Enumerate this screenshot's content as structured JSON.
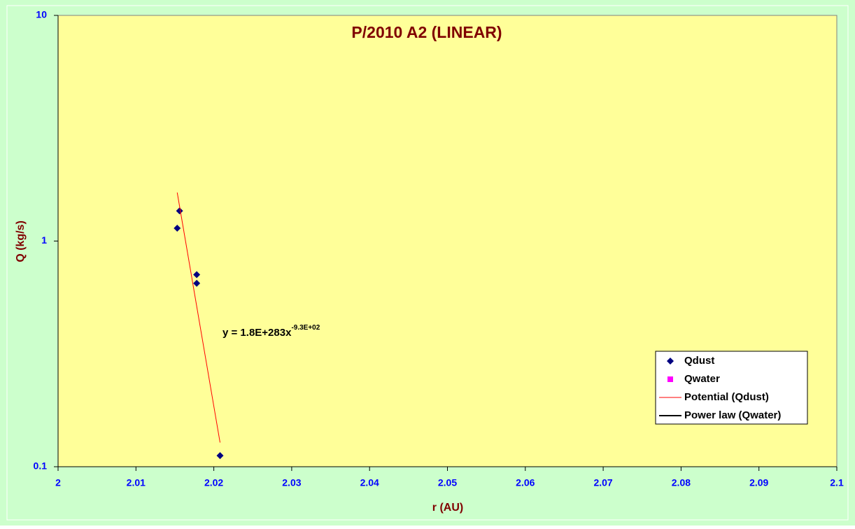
{
  "chart_data": {
    "type": "scatter",
    "title": "P/2010 A2 (LINEAR)",
    "x_label": "r (AU)",
    "y_label": "Q (kg/s)",
    "xlim": [
      2,
      2.1
    ],
    "xticks": [
      2,
      2.01,
      2.02,
      2.03,
      2.04,
      2.05,
      2.06,
      2.07,
      2.08,
      2.09,
      2.1
    ],
    "ylim": [
      0.1,
      10
    ],
    "yticks": [
      0.1,
      1,
      10
    ],
    "y_scale": "log",
    "legend_position": "lower right",
    "series": [
      {
        "name": "Qdust",
        "color": "#000080",
        "marker": "diamond",
        "x": [
          2.0153,
          2.0156,
          2.0178,
          2.0178,
          2.0208
        ],
        "values": [
          1.14,
          1.36,
          0.71,
          0.65,
          0.112
        ]
      },
      {
        "name": "Qwater",
        "color": "#ff00ff",
        "marker": "square",
        "x": [],
        "values": []
      },
      {
        "name": "Potential (Qdust)",
        "color": "#ff0000",
        "marker": "line",
        "x": [
          2.0153,
          2.0208
        ],
        "values": [
          1.64,
          0.128
        ]
      },
      {
        "name": "Power law (Qwater)",
        "color": "#000000",
        "marker": "line",
        "x": [],
        "values": []
      }
    ],
    "annotation": {
      "text": "y = 1.8E+283x",
      "exponent": "-9.3E+02"
    }
  }
}
